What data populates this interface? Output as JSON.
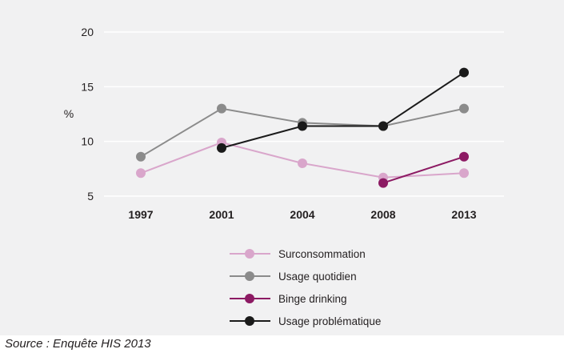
{
  "chart_data": {
    "type": "line",
    "x": [
      "1997",
      "2001",
      "2004",
      "2008",
      "2013"
    ],
    "ylabel": "%",
    "ylim": [
      5,
      20
    ],
    "yticks": [
      5,
      10,
      15,
      20
    ],
    "grid": true,
    "legend_placement": "bottom-center",
    "series": [
      {
        "name": "Surconsommation",
        "color": "#d9a6cb",
        "values": [
          7.1,
          9.9,
          8.0,
          6.7,
          7.1
        ]
      },
      {
        "name": "Usage quotidien",
        "color": "#8b8b8b",
        "values": [
          8.6,
          13.0,
          11.7,
          11.4,
          13.0
        ]
      },
      {
        "name": "Binge drinking",
        "color": "#8c1a63",
        "values": [
          null,
          null,
          null,
          6.2,
          8.6
        ]
      },
      {
        "name": "Usage problématique",
        "color": "#1a1a1a",
        "values": [
          null,
          9.4,
          11.4,
          11.4,
          16.3
        ]
      }
    ]
  },
  "source": "Source : Enquête HIS 2013"
}
